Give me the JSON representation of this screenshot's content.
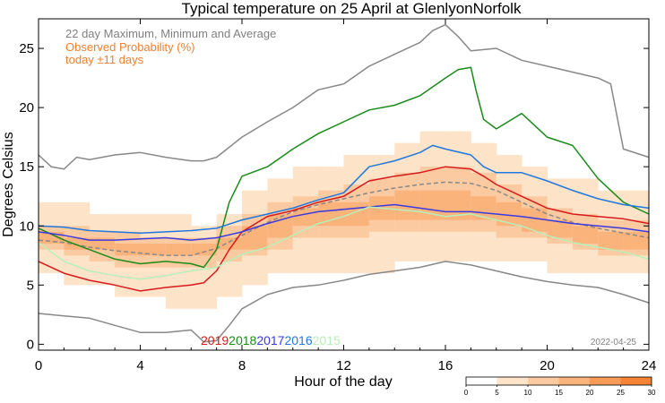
{
  "chart_data": {
    "type": "heatmap",
    "title": "Typical temperature on 25 April at GlenlyonNorfolk",
    "xlabel": "Hour of the day",
    "ylabel": "Degrees Celsius",
    "xlim": [
      0,
      24
    ],
    "ylim": [
      -0.5,
      27.5
    ],
    "x_ticks": [
      0,
      4,
      8,
      12,
      16,
      20,
      24
    ],
    "y_ticks": [
      0,
      5,
      10,
      15,
      20,
      25
    ],
    "legend": {
      "range_title": "22 day Maximum, Minimum and Average",
      "prob_title": "Observed Probability (%)",
      "prob_subtitle": "today ±11 days",
      "years": [
        "2019",
        "2018",
        "2017",
        "2016",
        "2015"
      ]
    },
    "date_stamp": "2022-04-25",
    "colorbar": {
      "ticks": [
        0,
        5,
        10,
        15,
        20,
        25,
        30
      ],
      "bins": [
        {
          "from": 0,
          "to": 5,
          "color": "#ffffff"
        },
        {
          "from": 5,
          "to": 10,
          "color": "#fde3c8"
        },
        {
          "from": 10,
          "to": 15,
          "color": "#fccaa0"
        },
        {
          "from": 15,
          "to": 20,
          "color": "#fbb37c"
        },
        {
          "from": 20,
          "to": 25,
          "color": "#f99b57"
        },
        {
          "from": 25,
          "to": 30,
          "color": "#f78434"
        }
      ]
    },
    "heatmap_bands": [
      {
        "x": [
          0,
          1
        ],
        "y_lo": 6,
        "y_hi": 12,
        "core_lo": 8,
        "core_hi": 10,
        "peak_lo": 8.5,
        "peak_hi": 9.5
      },
      {
        "x": [
          1,
          2
        ],
        "y_lo": 5,
        "y_hi": 12,
        "core_lo": 7.5,
        "core_hi": 10,
        "peak_lo": 8,
        "peak_hi": 9
      },
      {
        "x": [
          2,
          3
        ],
        "y_lo": 5,
        "y_hi": 11,
        "core_lo": 7,
        "core_hi": 9.5,
        "peak_lo": 8,
        "peak_hi": 9
      },
      {
        "x": [
          3,
          4
        ],
        "y_lo": 4,
        "y_hi": 11,
        "core_lo": 6.5,
        "core_hi": 9.5,
        "peak_lo": 7.5,
        "peak_hi": 8.5
      },
      {
        "x": [
          4,
          5
        ],
        "y_lo": 4,
        "y_hi": 11,
        "core_lo": 6.5,
        "core_hi": 9,
        "peak_lo": 7.5,
        "peak_hi": 8.5
      },
      {
        "x": [
          5,
          6
        ],
        "y_lo": 3,
        "y_hi": 11,
        "core_lo": 6.5,
        "core_hi": 9,
        "peak_lo": 7.5,
        "peak_hi": 8.5
      },
      {
        "x": [
          6,
          7
        ],
        "y_lo": 3,
        "y_hi": 10,
        "core_lo": 6.5,
        "core_hi": 9,
        "peak_lo": 7.5,
        "peak_hi": 8.5
      },
      {
        "x": [
          7,
          8
        ],
        "y_lo": 4,
        "y_hi": 11,
        "core_lo": 7,
        "core_hi": 10,
        "peak_lo": 8,
        "peak_hi": 9
      },
      {
        "x": [
          8,
          9
        ],
        "y_lo": 5,
        "y_hi": 13,
        "core_lo": 7.5,
        "core_hi": 11,
        "peak_lo": 8,
        "peak_hi": 10
      },
      {
        "x": [
          9,
          10
        ],
        "y_lo": 6,
        "y_hi": 14,
        "core_lo": 8,
        "core_hi": 12,
        "peak_lo": 9,
        "peak_hi": 11
      },
      {
        "x": [
          10,
          11
        ],
        "y_lo": 6,
        "y_hi": 15,
        "core_lo": 9,
        "core_hi": 12.5,
        "peak_lo": 10,
        "peak_hi": 11.5
      },
      {
        "x": [
          11,
          12
        ],
        "y_lo": 6,
        "y_hi": 15,
        "core_lo": 9,
        "core_hi": 13,
        "peak_lo": 10,
        "peak_hi": 12
      },
      {
        "x": [
          12,
          13
        ],
        "y_lo": 6,
        "y_hi": 16,
        "core_lo": 9,
        "core_hi": 13.5,
        "peak_lo": 10,
        "peak_hi": 12
      },
      {
        "x": [
          13,
          14
        ],
        "y_lo": 6,
        "y_hi": 16,
        "core_lo": 9.5,
        "core_hi": 14,
        "peak_lo": 10.5,
        "peak_hi": 12.5
      },
      {
        "x": [
          14,
          15
        ],
        "y_lo": 7,
        "y_hi": 17,
        "core_lo": 9.5,
        "core_hi": 14.5,
        "peak_lo": 10.5,
        "peak_hi": 13
      },
      {
        "x": [
          15,
          16
        ],
        "y_lo": 7,
        "y_hi": 18,
        "core_lo": 9.5,
        "core_hi": 15,
        "peak_lo": 10.5,
        "peak_hi": 13
      },
      {
        "x": [
          16,
          17
        ],
        "y_lo": 7,
        "y_hi": 18,
        "core_lo": 9.5,
        "core_hi": 15,
        "peak_lo": 10.5,
        "peak_hi": 13
      },
      {
        "x": [
          17,
          18
        ],
        "y_lo": 7,
        "y_hi": 17,
        "core_lo": 9.5,
        "core_hi": 14.5,
        "peak_lo": 10.5,
        "peak_hi": 12.5
      },
      {
        "x": [
          18,
          19
        ],
        "y_lo": 7,
        "y_hi": 16,
        "core_lo": 9,
        "core_hi": 13.5,
        "peak_lo": 10,
        "peak_hi": 12
      },
      {
        "x": [
          19,
          20
        ],
        "y_lo": 7,
        "y_hi": 15,
        "core_lo": 9,
        "core_hi": 12.5,
        "peak_lo": 9.5,
        "peak_hi": 11.5
      },
      {
        "x": [
          20,
          21
        ],
        "y_lo": 6,
        "y_hi": 14,
        "core_lo": 8.5,
        "core_hi": 11.5,
        "peak_lo": 9,
        "peak_hi": 10.5
      },
      {
        "x": [
          21,
          22
        ],
        "y_lo": 6,
        "y_hi": 14,
        "core_lo": 8,
        "core_hi": 11,
        "peak_lo": 8.5,
        "peak_hi": 10
      },
      {
        "x": [
          22,
          23
        ],
        "y_lo": 6,
        "y_hi": 13,
        "core_lo": 7.5,
        "core_hi": 10.5,
        "peak_lo": 8,
        "peak_hi": 9.5
      },
      {
        "x": [
          23,
          24
        ],
        "y_lo": 6,
        "y_hi": 13,
        "core_lo": 7.5,
        "core_hi": 10.5,
        "peak_lo": 8,
        "peak_hi": 9.5
      }
    ],
    "series": [
      {
        "name": "max",
        "color": "#888888",
        "dash": false,
        "x": [
          0,
          0.5,
          1,
          1.5,
          2,
          3,
          4,
          5,
          6,
          6.5,
          7,
          8,
          9,
          10,
          11,
          12,
          13,
          14,
          15,
          15.5,
          16,
          16.5,
          17,
          18,
          19,
          20,
          21,
          22,
          22.5,
          23,
          24
        ],
        "y": [
          16,
          15,
          14.8,
          15.8,
          15.6,
          16,
          16.2,
          15.8,
          15.5,
          15.5,
          15.8,
          17.5,
          18.8,
          20,
          21.5,
          22,
          23.5,
          24.5,
          25.5,
          26.5,
          27,
          26,
          24.8,
          25,
          24,
          23.5,
          23,
          22.5,
          22,
          16.5,
          15.8
        ]
      },
      {
        "name": "min",
        "color": "#888888",
        "dash": false,
        "x": [
          0,
          1,
          2,
          3,
          4,
          5,
          6,
          6.5,
          7,
          7.5,
          8,
          9,
          10,
          11,
          12,
          13,
          14,
          15,
          16,
          17,
          18,
          19,
          20,
          21,
          22,
          23,
          24
        ],
        "y": [
          2.6,
          2.4,
          2.2,
          1.6,
          1,
          1,
          1.2,
          0.2,
          0.3,
          1.6,
          3,
          4.2,
          4.8,
          5,
          5.4,
          5.9,
          6.2,
          6.5,
          7,
          6.7,
          6.2,
          5.7,
          5.3,
          5,
          4.8,
          4.2,
          3.5
        ]
      },
      {
        "name": "average",
        "color": "#888888",
        "dash": true,
        "x": [
          0,
          1,
          2,
          3,
          4,
          5,
          6,
          7,
          8,
          9,
          10,
          11,
          12,
          13,
          14,
          15,
          16,
          17,
          18,
          19,
          20,
          21,
          22,
          23,
          24
        ],
        "y": [
          8.8,
          8.6,
          8.2,
          7.9,
          7.7,
          7.5,
          7.5,
          8.1,
          9.2,
          10.3,
          11.2,
          11.8,
          12.3,
          12.8,
          13.2,
          13.5,
          13.7,
          13.6,
          13,
          12,
          11,
          10.3,
          9.8,
          9.4,
          9
        ]
      },
      {
        "name": "2019",
        "color": "#d7191c",
        "dash": false,
        "x": [
          0,
          1,
          2,
          3,
          4,
          5,
          6,
          6.5,
          7,
          7.5,
          8,
          9,
          10,
          11,
          12,
          13,
          14,
          15,
          16,
          17,
          17.5,
          18,
          19,
          20,
          21,
          22,
          23,
          24
        ],
        "y": [
          7,
          6,
          5.4,
          5,
          4.5,
          4.8,
          5,
          5.2,
          6.2,
          8,
          9.5,
          10.8,
          11.3,
          12,
          12.5,
          13.8,
          14.2,
          14.5,
          15,
          14.8,
          14.2,
          13.5,
          12.5,
          11.5,
          11,
          10.8,
          10.6,
          10.2
        ]
      },
      {
        "name": "2018",
        "color": "#1a8a1a",
        "dash": false,
        "x": [
          0,
          1,
          2,
          3,
          4,
          5,
          6,
          6.5,
          7,
          7.5,
          8,
          9,
          10,
          11,
          12,
          13,
          14,
          15,
          16,
          16.5,
          17,
          17.2,
          17.5,
          18,
          19,
          20,
          21,
          22,
          23,
          24
        ],
        "y": [
          9.8,
          8.8,
          8,
          7.2,
          6.8,
          7,
          6.8,
          6.5,
          8,
          12,
          14.2,
          15,
          16.5,
          17.8,
          18.8,
          19.8,
          20.2,
          21,
          22.5,
          23.2,
          23.4,
          21.5,
          19,
          18.2,
          19.5,
          17.5,
          16.8,
          14,
          12,
          11
        ]
      },
      {
        "name": "2017",
        "color": "#3a3adf",
        "dash": false,
        "x": [
          0,
          1,
          2,
          3,
          4,
          5,
          6,
          7,
          8,
          9,
          10,
          11,
          12,
          13,
          14,
          15,
          16,
          17,
          18,
          19,
          20,
          21,
          22,
          23,
          24
        ],
        "y": [
          9.5,
          9.2,
          8.8,
          8.8,
          8.9,
          9,
          8.8,
          9,
          9.5,
          10.2,
          10.8,
          11.2,
          11.4,
          11.6,
          11.8,
          11.5,
          11.2,
          11.2,
          11,
          10.8,
          10.5,
          10.2,
          10,
          9.8,
          9.5
        ]
      },
      {
        "name": "2016",
        "color": "#1f78e0",
        "dash": false,
        "x": [
          0,
          1,
          2,
          3,
          4,
          5,
          6,
          7,
          8,
          9,
          10,
          11,
          12,
          13,
          14,
          15,
          15.5,
          16,
          17,
          17.5,
          18,
          19,
          20,
          21,
          22,
          23,
          24
        ],
        "y": [
          10,
          9.9,
          9.6,
          9.5,
          9.4,
          9.5,
          9.6,
          9.8,
          10.5,
          11,
          11.5,
          12.2,
          12.8,
          15,
          15.5,
          16.2,
          16.8,
          16.5,
          16,
          15,
          14.5,
          14.5,
          13.8,
          13,
          12.3,
          11.8,
          11.5
        ]
      },
      {
        "name": "2015",
        "color": "#b8f0b8",
        "dash": false,
        "x": [
          0,
          1,
          2,
          3,
          4,
          5,
          6,
          7,
          8,
          9,
          10,
          11,
          12,
          13,
          14,
          15,
          16,
          17,
          18,
          19,
          20,
          21,
          22,
          23,
          24
        ],
        "y": [
          8.6,
          7,
          6.2,
          5.8,
          5.5,
          5.8,
          6.2,
          6.5,
          7.6,
          8.2,
          9.2,
          10.2,
          10.8,
          11.6,
          11.4,
          11.2,
          10.8,
          11,
          10.5,
          10,
          9.2,
          8.6,
          8.2,
          7.8,
          7.2
        ]
      }
    ]
  }
}
